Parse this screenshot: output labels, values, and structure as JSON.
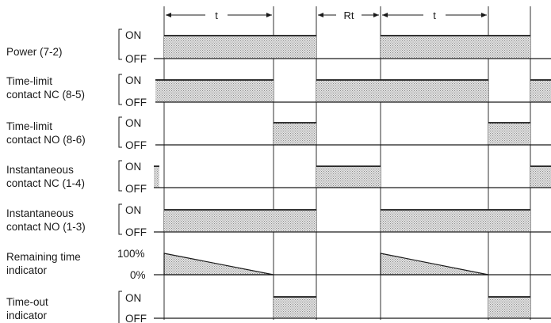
{
  "rows": [
    {
      "label_lines": [
        "Power (7-2)"
      ],
      "states": [
        "ON",
        "OFF"
      ]
    },
    {
      "label_lines": [
        "Time-limit",
        "contact NC (8-5)"
      ],
      "states": [
        "ON",
        "OFF"
      ]
    },
    {
      "label_lines": [
        "Time-limit",
        "contact NO (8-6)"
      ],
      "states": [
        "ON",
        "OFF"
      ]
    },
    {
      "label_lines": [
        "Instantaneous",
        "contact NC (1-4)"
      ],
      "states": [
        "ON",
        "OFF"
      ]
    },
    {
      "label_lines": [
        "Instantaneous",
        "contact NO (1-3)"
      ],
      "states": [
        "ON",
        "OFF"
      ]
    },
    {
      "label_lines": [
        "Remaining time",
        "indicator"
      ],
      "states": [
        "100%",
        "0%"
      ]
    },
    {
      "label_lines": [
        "Time-out",
        "indicator"
      ],
      "states": [
        "ON",
        "OFF"
      ]
    }
  ],
  "dimensions": [
    {
      "label": "t"
    },
    {
      "label": "Rt"
    },
    {
      "label": "t"
    }
  ],
  "colors": {
    "ink": "#1a1a1a",
    "fill": "#b8b8b8",
    "background": "#ffffff"
  }
}
